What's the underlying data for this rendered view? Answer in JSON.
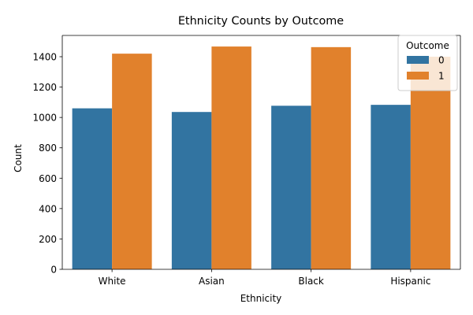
{
  "chart_data": {
    "type": "bar",
    "title": "Ethnicity Counts by Outcome",
    "xlabel": "Ethnicity",
    "ylabel": "Count",
    "categories": [
      "White",
      "Asian",
      "Black",
      "Hispanic"
    ],
    "series": [
      {
        "name": "0",
        "color": "#3274a1",
        "values": [
          1060,
          1036,
          1077,
          1083
        ]
      },
      {
        "name": "1",
        "color": "#e1812c",
        "values": [
          1420,
          1467,
          1463,
          1400
        ]
      }
    ],
    "ylim": [
      0,
      1540
    ],
    "yticks": [
      0,
      200,
      400,
      600,
      800,
      1000,
      1200,
      1400
    ],
    "grid": false,
    "legend": {
      "title": "Outcome",
      "placement": "top-right"
    }
  }
}
